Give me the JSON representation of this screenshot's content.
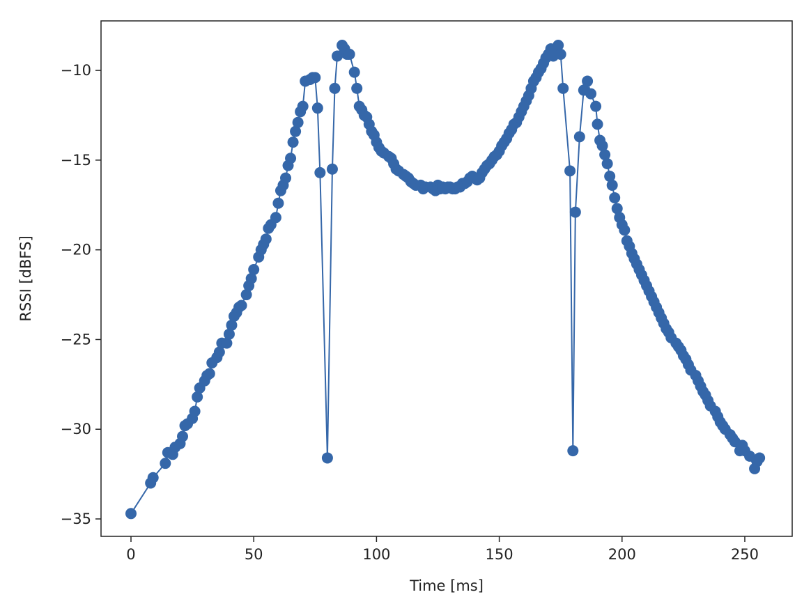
{
  "chart_data": {
    "type": "line",
    "xlabel": "Time [ms]",
    "ylabel": "RSSI [dBFS]",
    "color": "#3567a9",
    "xlim": [
      -12.2,
      269.3
    ],
    "ylim": [
      -35.97,
      -7.24
    ],
    "xticks": [
      0,
      50,
      100,
      150,
      200,
      250
    ],
    "yticks": [
      {
        "value": -35,
        "label": "−35"
      },
      {
        "value": -30,
        "label": "−30"
      },
      {
        "value": -25,
        "label": "−25"
      },
      {
        "value": -20,
        "label": "−20"
      },
      {
        "value": -15,
        "label": "−15"
      },
      {
        "value": -10,
        "label": "−10"
      }
    ],
    "x": [
      0,
      8,
      9,
      14,
      15,
      17,
      18,
      20,
      21,
      22,
      23,
      25,
      26,
      27,
      28,
      30,
      31,
      32,
      33,
      35,
      36,
      37,
      39,
      40,
      41,
      42,
      43,
      44,
      45,
      47,
      48,
      49,
      50,
      52,
      53,
      54,
      55,
      56,
      57,
      59,
      60,
      61,
      62,
      63,
      64,
      65,
      66,
      67,
      68,
      69,
      70,
      71,
      73,
      74,
      75,
      76,
      77,
      80,
      82,
      83,
      84,
      86,
      87,
      88,
      89,
      91,
      92,
      93,
      94,
      95,
      96,
      97,
      98,
      99,
      100,
      101,
      102,
      103,
      105,
      106,
      107,
      108,
      109,
      111,
      112,
      113,
      114,
      115,
      116,
      118,
      119,
      120,
      122,
      123,
      124,
      125,
      126,
      127,
      128,
      129,
      130,
      131,
      132,
      133,
      134,
      135,
      136,
      137,
      138,
      139,
      140,
      141,
      142,
      143,
      144,
      145,
      146,
      147,
      148,
      149,
      150,
      151,
      152,
      153,
      154,
      155,
      156,
      157,
      158,
      159,
      160,
      161,
      162,
      163,
      164,
      165,
      166,
      167,
      168,
      169,
      170,
      171,
      172,
      173,
      174,
      175,
      176,
      178.8,
      180,
      181,
      182.7,
      184.4,
      185.9,
      187.3,
      189.3,
      190,
      191,
      192,
      193,
      194,
      195,
      196,
      197,
      198,
      199,
      200,
      201,
      202,
      203,
      204,
      205,
      206,
      207,
      208,
      209,
      210,
      211,
      212,
      213,
      214,
      215,
      216,
      217,
      218,
      219,
      220,
      222,
      223,
      224,
      225,
      226,
      227,
      228,
      230,
      231,
      232,
      233,
      234,
      235,
      236,
      238,
      239,
      240,
      241,
      242,
      244,
      245,
      246,
      248,
      249,
      250,
      252,
      254,
      255,
      256
    ],
    "values": [
      -34.7,
      -33.0,
      -32.7,
      -31.9,
      -31.3,
      -31.4,
      -31.0,
      -30.8,
      -30.4,
      -29.8,
      -29.7,
      -29.4,
      -29.0,
      -28.2,
      -27.7,
      -27.3,
      -27.0,
      -26.9,
      -26.3,
      -26.0,
      -25.7,
      -25.2,
      -25.2,
      -24.7,
      -24.2,
      -23.7,
      -23.5,
      -23.2,
      -23.1,
      -22.5,
      -22.0,
      -21.6,
      -21.1,
      -20.4,
      -20.0,
      -19.7,
      -19.4,
      -18.8,
      -18.6,
      -18.2,
      -17.4,
      -16.7,
      -16.4,
      -16.0,
      -15.3,
      -14.9,
      -14.0,
      -13.4,
      -12.9,
      -12.3,
      -12.0,
      -10.6,
      -10.5,
      -10.4,
      -10.4,
      -12.1,
      -15.7,
      -31.6,
      -15.5,
      -11.0,
      -9.2,
      -8.6,
      -8.8,
      -9.1,
      -9.1,
      -10.1,
      -11.0,
      -12.0,
      -12.2,
      -12.5,
      -12.6,
      -13.0,
      -13.4,
      -13.6,
      -14.0,
      -14.3,
      -14.5,
      -14.6,
      -14.8,
      -14.9,
      -15.2,
      -15.5,
      -15.6,
      -15.8,
      -15.9,
      -16.0,
      -16.2,
      -16.3,
      -16.4,
      -16.4,
      -16.6,
      -16.5,
      -16.5,
      -16.6,
      -16.7,
      -16.4,
      -16.6,
      -16.5,
      -16.6,
      -16.5,
      -16.5,
      -16.6,
      -16.6,
      -16.5,
      -16.5,
      -16.3,
      -16.3,
      -16.2,
      -16.0,
      -15.9,
      -16.0,
      -16.1,
      -16.0,
      -15.7,
      -15.5,
      -15.3,
      -15.2,
      -15.0,
      -14.8,
      -14.7,
      -14.5,
      -14.2,
      -14.0,
      -13.8,
      -13.5,
      -13.3,
      -13.0,
      -12.9,
      -12.6,
      -12.3,
      -12.0,
      -11.7,
      -11.4,
      -11.0,
      -10.6,
      -10.4,
      -10.1,
      -9.9,
      -9.6,
      -9.3,
      -9.1,
      -8.8,
      -9.2,
      -8.9,
      -8.6,
      -9.1,
      -11.0,
      -15.6,
      -31.2,
      -17.9,
      -13.7,
      -11.1,
      -10.6,
      -11.3,
      -12.0,
      -13.0,
      -13.9,
      -14.2,
      -14.7,
      -15.2,
      -15.9,
      -16.4,
      -17.1,
      -17.7,
      -18.2,
      -18.6,
      -18.9,
      -19.5,
      -19.8,
      -20.2,
      -20.5,
      -20.8,
      -21.1,
      -21.4,
      -21.7,
      -22.0,
      -22.3,
      -22.6,
      -22.9,
      -23.2,
      -23.5,
      -23.8,
      -24.1,
      -24.4,
      -24.6,
      -24.9,
      -25.2,
      -25.4,
      -25.6,
      -25.9,
      -26.1,
      -26.4,
      -26.7,
      -27.0,
      -27.3,
      -27.6,
      -27.9,
      -28.1,
      -28.4,
      -28.7,
      -29.0,
      -29.3,
      -29.6,
      -29.8,
      -30.0,
      -30.3,
      -30.5,
      -30.7,
      -31.2,
      -30.9,
      -31.2,
      -31.5,
      -32.2,
      -31.8,
      -31.6
    ]
  }
}
